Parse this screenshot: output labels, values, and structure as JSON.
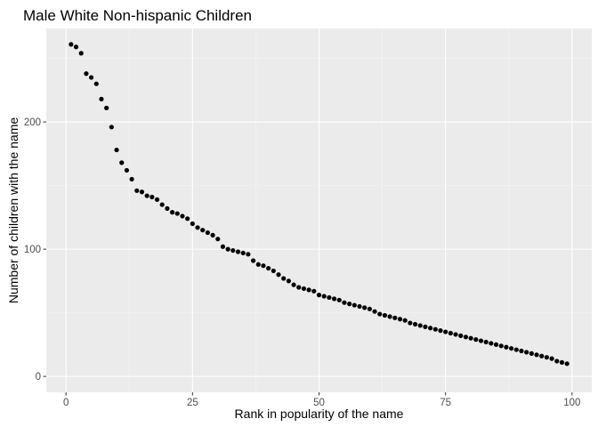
{
  "chart_data": {
    "type": "scatter",
    "title": "Male White Non-hispanic Children",
    "xlabel": "Rank in popularity of the name",
    "ylabel": "Number of children with the name",
    "xlim": [
      -3.9,
      103.9
    ],
    "ylim": [
      -12.5,
      273.5
    ],
    "x_ticks": [
      0,
      25,
      50,
      75,
      100
    ],
    "y_ticks": [
      0,
      100,
      200
    ],
    "grid": true,
    "legend": "none",
    "colors": {
      "panel": "#ebebeb",
      "grid_major": "#ffffff",
      "grid_minor": "#f5f5f5",
      "point": "#000000",
      "tick": "#4d4d4d"
    },
    "x": [
      1,
      2,
      3,
      4,
      5,
      6,
      7,
      8,
      9,
      10,
      11,
      12,
      13,
      14,
      15,
      16,
      17,
      18,
      19,
      20,
      21,
      22,
      23,
      24,
      25,
      26,
      27,
      28,
      29,
      30,
      31,
      32,
      33,
      34,
      35,
      36,
      37,
      38,
      39,
      40,
      41,
      42,
      43,
      44,
      45,
      46,
      47,
      48,
      49,
      50,
      51,
      52,
      53,
      54,
      55,
      56,
      57,
      58,
      59,
      60,
      61,
      62,
      63,
      64,
      65,
      66,
      67,
      68,
      69,
      70,
      71,
      72,
      73,
      74,
      75,
      76,
      77,
      78,
      79,
      80,
      81,
      82,
      83,
      84,
      85,
      86,
      87,
      88,
      89,
      90,
      91,
      92,
      93,
      94,
      95,
      96,
      97,
      98,
      99
    ],
    "y": [
      261,
      259,
      254,
      238,
      235,
      230,
      218,
      211,
      196,
      178,
      168,
      162,
      155,
      146,
      145,
      142,
      141,
      139,
      135,
      132,
      129,
      128,
      126,
      124,
      120,
      117,
      115,
      113,
      111,
      108,
      102,
      100,
      99,
      98,
      97,
      96,
      91,
      88,
      87,
      85,
      83,
      80,
      77,
      75,
      72,
      70,
      69,
      68,
      67,
      64,
      63,
      62,
      61,
      60,
      58,
      57,
      56,
      55,
      54,
      53,
      51,
      49,
      48,
      47,
      46,
      45,
      44,
      42,
      41,
      40,
      39,
      38,
      37,
      36,
      35,
      34,
      33,
      32,
      31,
      30,
      29,
      28,
      27,
      26,
      25,
      24,
      23,
      22,
      21,
      20,
      19,
      18,
      17,
      16,
      15,
      14,
      12,
      11,
      10
    ]
  }
}
